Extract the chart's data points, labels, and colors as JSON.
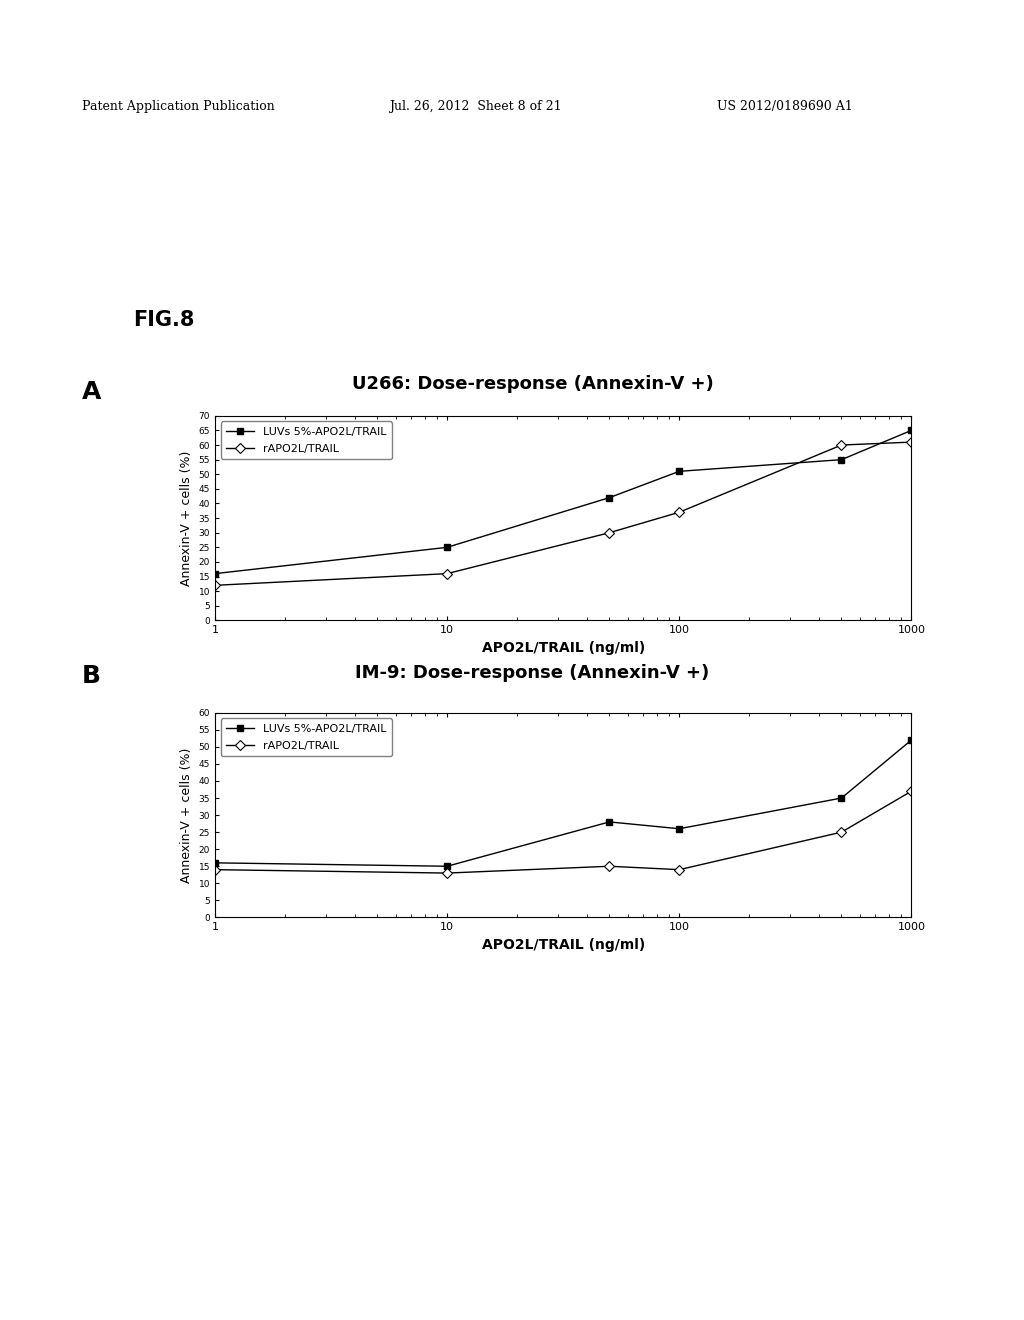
{
  "chart_A": {
    "title": "U266: Dose-response (Annexin-V +)",
    "LUVs_x": [
      1,
      10,
      50,
      100,
      500,
      1000
    ],
    "LUVs_y": [
      16,
      25,
      42,
      51,
      55,
      65
    ],
    "rAPO_x": [
      1,
      10,
      50,
      100,
      500,
      1000
    ],
    "rAPO_y": [
      12,
      16,
      30,
      37,
      60,
      61
    ],
    "ylim": [
      0,
      70
    ],
    "yticks": [
      0,
      5,
      10,
      15,
      20,
      25,
      30,
      35,
      40,
      45,
      50,
      55,
      60,
      65,
      70
    ]
  },
  "chart_B": {
    "title": "IM-9: Dose-response (Annexin-V +)",
    "LUVs_x": [
      1,
      10,
      50,
      100,
      500,
      1000
    ],
    "LUVs_y": [
      16,
      15,
      28,
      26,
      35,
      52
    ],
    "rAPO_x": [
      1,
      10,
      50,
      100,
      500,
      1000
    ],
    "rAPO_y": [
      14,
      13,
      15,
      14,
      25,
      37
    ],
    "ylim": [
      0,
      60
    ],
    "yticks": [
      0,
      5,
      10,
      15,
      20,
      25,
      30,
      35,
      40,
      45,
      50,
      55,
      60
    ]
  },
  "xlabel": "APO2L/TRAIL (ng/ml)",
  "ylabel": "Annexin-V + cells (%)",
  "legend_LUVs": "LUVs 5%-APO2L/TRAIL",
  "legend_rAPO": "rAPO2L/TRAIL",
  "header_left": "Patent Application Publication",
  "header_mid": "Jul. 26, 2012  Sheet 8 of 21",
  "header_right": "US 2012/0189690 A1",
  "fig_label": "FIG.8",
  "panel_A_label": "A",
  "panel_B_label": "B",
  "background_color": "#ffffff",
  "line_color": "#000000"
}
